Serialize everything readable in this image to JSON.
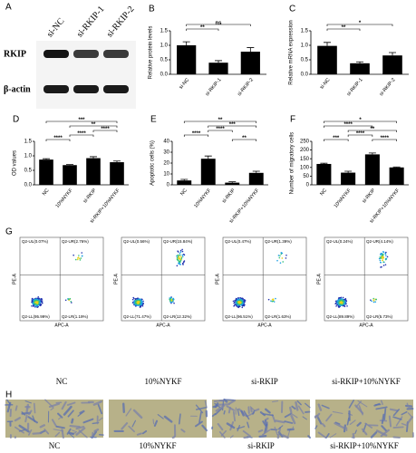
{
  "blot": {
    "panel": "A",
    "lanes": [
      "si-NC",
      "si-RKIP-1",
      "si-RKIP-2"
    ],
    "rows": [
      "RKIP",
      "β-actin"
    ]
  },
  "chart_data": [
    {
      "type": "bar",
      "panel": "B",
      "y_label": "Relative protein levels",
      "categories": [
        "si-NC",
        "si-RKIP-1",
        "si-RKIP-2"
      ],
      "values": [
        1.0,
        0.4,
        0.78
      ],
      "errors": [
        0.12,
        0.07,
        0.14
      ],
      "color": "#000000",
      "ylim": [
        0,
        1.5
      ],
      "yticks": [
        {
          "value": 0,
          "label": "0.0"
        },
        0.5,
        {
          "value": 1,
          "label": "1.0"
        },
        1.5
      ],
      "annotations": [
        "**",
        "ns"
      ]
    },
    {
      "type": "bar",
      "panel": "C",
      "y_label": "Relative mRNA expression",
      "categories": [
        "si-NC",
        "si-RKIP-1",
        "si-RKIP-2"
      ],
      "values": [
        0.98,
        0.38,
        0.65
      ],
      "errors": [
        0.12,
        0.05,
        0.1
      ],
      "color": "#000000",
      "ylim": [
        0,
        1.5
      ],
      "yticks": [
        {
          "value": 0,
          "label": "0.0"
        },
        0.5,
        {
          "value": 1,
          "label": "1.0"
        },
        1.5
      ],
      "annotations": [
        "**",
        "*"
      ]
    },
    {
      "type": "bar",
      "panel": "D",
      "y_label": "OD values",
      "categories": [
        "NC",
        "10%NYKF",
        "si-RKIP",
        "si-RKIP+10%NYKF"
      ],
      "values": [
        0.87,
        0.68,
        0.92,
        0.78
      ],
      "errors": [
        0.03,
        0.02,
        0.05,
        0.04
      ],
      "color": "#000000",
      "ylim": [
        0,
        1.5
      ],
      "yticks": [
        {
          "value": 0,
          "label": "0.0"
        },
        0.5,
        {
          "value": 1,
          "label": "1.0"
        },
        1.5
      ],
      "annotations": [
        "***",
        "**",
        "****",
        "****",
        "****"
      ]
    },
    {
      "type": "bar",
      "panel": "E",
      "y_label": "Apoptotic cells (%)",
      "categories": [
        "NC",
        "10%NYKF",
        "si-RKIP",
        "si-RKIP+10%NYKF"
      ],
      "values": [
        4,
        24,
        2,
        11
      ],
      "errors": [
        1,
        2.5,
        0.8,
        1.5
      ],
      "color": "#000000",
      "ylim": [
        0,
        40
      ],
      "yticks": [
        0,
        10,
        20,
        30,
        40
      ],
      "annotations": [
        "**",
        "***",
        "****",
        "****",
        "**"
      ]
    },
    {
      "type": "bar",
      "panel": "F",
      "y_label": "Number of migratory cells",
      "categories": [
        "NC",
        "10%NYKF",
        "si-RKIP",
        "si-RKIP+10%NYKF"
      ],
      "values": [
        120,
        70,
        175,
        100
      ],
      "errors": [
        4,
        8,
        8,
        3
      ],
      "color": "#000000",
      "ylim": [
        0,
        250
      ],
      "yticks": [
        0,
        50,
        100,
        150,
        200,
        250
      ],
      "annotations": [
        "*",
        "****",
        "**",
        "***",
        "****",
        "****"
      ]
    }
  ],
  "flow": {
    "panel": "G",
    "x_label": "APC-A",
    "y_label": "PE-A",
    "plots": [
      {
        "caption": "NC",
        "quadrants": [
          "Q2-UL(0.07%)",
          "Q2-UR(2.76%)",
          "Q2-LL(95.99%)",
          "Q2-LR(1.19%)"
        ]
      },
      {
        "caption": "10%NYKF",
        "quadrants": [
          "Q2-UL(0.56%)",
          "Q2-UR(15.84%)",
          "Q2-LL(71.47%)",
          "Q2-LR(12.32%)"
        ]
      },
      {
        "caption": "si-RKIP",
        "quadrants": [
          "Q2-UL(0.47%)",
          "Q2-UR(1.39%)",
          "Q2-LL(96.51%)",
          "Q2-LR(1.63%)"
        ]
      },
      {
        "caption": "si-RKIP+10%NYKF",
        "quadrants": [
          "Q2-UL(0.24%)",
          "Q2-UR(4.14%)",
          "Q2-LL(89.89%)",
          "Q2-LR(5.73%)"
        ]
      }
    ]
  },
  "micrographs": {
    "panel": "H",
    "captions": [
      "NC",
      "10%NYKF",
      "si-RKIP",
      "si-RKIP+10%NYKF"
    ]
  }
}
